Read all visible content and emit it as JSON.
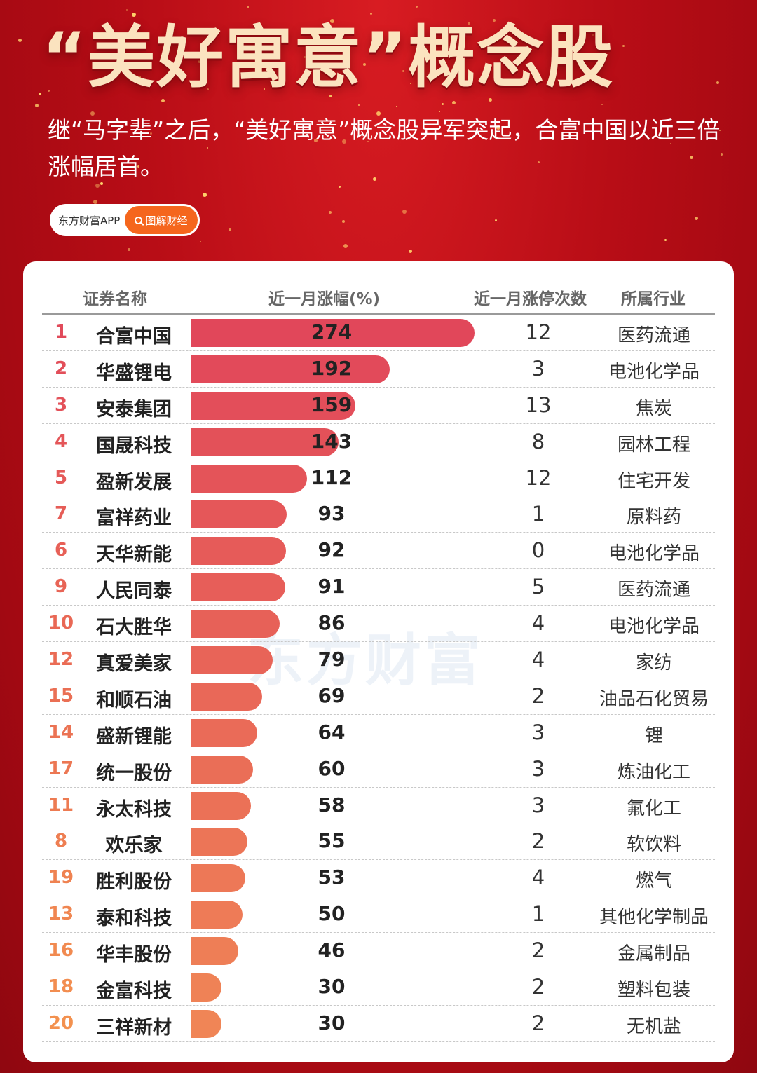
{
  "header": {
    "title": "“美好寓意”概念股",
    "subtitle": "继“马字辈”之后，“美好寓意”概念股异军突起，合富中国以近三倍涨幅居首。",
    "brand_name": "东方财富APP",
    "brand_tag": "图解财经"
  },
  "watermark": "东方财富",
  "columns": {
    "name": "证券名称",
    "pct": "近一月涨幅(%)",
    "count": "近一月涨停次数",
    "industry": "所属行业"
  },
  "colors": {
    "bar_top": "#e1475a",
    "bar_bottom": "#f08556",
    "rank_top": "#e14a5a",
    "rank_bottom": "#f3914f"
  },
  "chart_data": {
    "type": "bar",
    "orientation": "horizontal",
    "categories": [
      "合富中国",
      "华盛锂电",
      "安泰集团",
      "国晟科技",
      "盈新发展",
      "富祥药业",
      "天华新能",
      "人民同泰",
      "石大胜华",
      "真爱美家",
      "和顺石油",
      "盛新锂能",
      "统一股份",
      "永太科技",
      "欢乐家",
      "胜利股份",
      "泰和科技",
      "华丰股份",
      "金富科技",
      "三祥新材"
    ],
    "values": [
      274,
      192,
      159,
      143,
      112,
      93,
      92,
      91,
      86,
      79,
      69,
      64,
      60,
      58,
      55,
      53,
      50,
      46,
      30,
      30
    ],
    "ylabel": "近一月涨幅(%)",
    "grid": false
  },
  "rows": [
    {
      "rank": "1",
      "name": "合富中国",
      "pct": "274",
      "count": "12",
      "industry": "医药流通"
    },
    {
      "rank": "2",
      "name": "华盛锂电",
      "pct": "192",
      "count": "3",
      "industry": "电池化学品"
    },
    {
      "rank": "3",
      "name": "安泰集团",
      "pct": "159",
      "count": "13",
      "industry": "焦炭"
    },
    {
      "rank": "4",
      "name": "国晟科技",
      "pct": "143",
      "count": "8",
      "industry": "园林工程"
    },
    {
      "rank": "5",
      "name": "盈新发展",
      "pct": "112",
      "count": "12",
      "industry": "住宅开发"
    },
    {
      "rank": "7",
      "name": "富祥药业",
      "pct": "93",
      "count": "1",
      "industry": "原料药"
    },
    {
      "rank": "6",
      "name": "天华新能",
      "pct": "92",
      "count": "0",
      "industry": "电池化学品"
    },
    {
      "rank": "9",
      "name": "人民同泰",
      "pct": "91",
      "count": "5",
      "industry": "医药流通"
    },
    {
      "rank": "10",
      "name": "石大胜华",
      "pct": "86",
      "count": "4",
      "industry": "电池化学品"
    },
    {
      "rank": "12",
      "name": "真爱美家",
      "pct": "79",
      "count": "4",
      "industry": "家纺"
    },
    {
      "rank": "15",
      "name": "和顺石油",
      "pct": "69",
      "count": "2",
      "industry": "油品石化贸易"
    },
    {
      "rank": "14",
      "name": "盛新锂能",
      "pct": "64",
      "count": "3",
      "industry": "锂"
    },
    {
      "rank": "17",
      "name": "统一股份",
      "pct": "60",
      "count": "3",
      "industry": "炼油化工"
    },
    {
      "rank": "11",
      "name": "永太科技",
      "pct": "58",
      "count": "3",
      "industry": "氟化工"
    },
    {
      "rank": "8",
      "name": "欢乐家",
      "pct": "55",
      "count": "2",
      "industry": "软饮料"
    },
    {
      "rank": "19",
      "name": "胜利股份",
      "pct": "53",
      "count": "4",
      "industry": "燃气"
    },
    {
      "rank": "13",
      "name": "泰和科技",
      "pct": "50",
      "count": "1",
      "industry": "其他化学制品"
    },
    {
      "rank": "16",
      "name": "华丰股份",
      "pct": "46",
      "count": "2",
      "industry": "金属制品"
    },
    {
      "rank": "18",
      "name": "金富科技",
      "pct": "30",
      "count": "2",
      "industry": "塑料包装"
    },
    {
      "rank": "20",
      "name": "三祥新材",
      "pct": "30",
      "count": "2",
      "industry": "无机盐"
    }
  ]
}
